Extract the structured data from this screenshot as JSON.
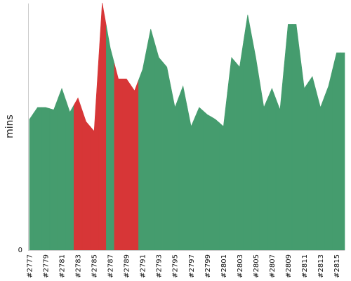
{
  "chart_data": {
    "type": "area",
    "title": "",
    "xlabel": "",
    "ylabel": "mins",
    "y_tick_label": "0",
    "ylim": [
      0,
      104
    ],
    "grid": false,
    "legend": "none",
    "colors": {
      "passed": "#459c6e",
      "failed": "#d73637"
    },
    "x_tick_labels": [
      "#2777",
      "#2779",
      "#2781",
      "#2783",
      "#2785",
      "#2787",
      "#2789",
      "#2791",
      "#2793",
      "#2795",
      "#2797",
      "#2799",
      "#2801",
      "#2803",
      "#2805",
      "#2807",
      "#2809",
      "#2811",
      "#2813",
      "#2815"
    ],
    "points": [
      {
        "x": "#2777",
        "value": 55,
        "status": "passed"
      },
      {
        "x": "#2778",
        "value": 60,
        "status": "passed"
      },
      {
        "x": "#2779",
        "value": 60,
        "status": "passed"
      },
      {
        "x": "#2780",
        "value": 59,
        "status": "passed"
      },
      {
        "x": "#2781",
        "value": 68,
        "status": "passed"
      },
      {
        "x": "#2782",
        "value": 58,
        "status": "passed"
      },
      {
        "x": "#2783",
        "value": 64,
        "status": "failed"
      },
      {
        "x": "#2784",
        "value": 54,
        "status": "failed"
      },
      {
        "x": "#2785",
        "value": 50,
        "status": "failed"
      },
      {
        "x": "#2786",
        "value": 104,
        "status": "failed"
      },
      {
        "x": "#2787",
        "value": 85,
        "status": "passed"
      },
      {
        "x": "#2788",
        "value": 72,
        "status": "failed"
      },
      {
        "x": "#2789",
        "value": 72,
        "status": "failed"
      },
      {
        "x": "#2790",
        "value": 67,
        "status": "failed"
      },
      {
        "x": "#2791",
        "value": 76,
        "status": "passed"
      },
      {
        "x": "#2792",
        "value": 93,
        "status": "passed"
      },
      {
        "x": "#2793",
        "value": 81,
        "status": "passed"
      },
      {
        "x": "#2794",
        "value": 77,
        "status": "passed"
      },
      {
        "x": "#2795",
        "value": 60,
        "status": "passed"
      },
      {
        "x": "#2796",
        "value": 69,
        "status": "passed"
      },
      {
        "x": "#2797",
        "value": 52,
        "status": "passed"
      },
      {
        "x": "#2798",
        "value": 60,
        "status": "passed"
      },
      {
        "x": "#2799",
        "value": 57,
        "status": "passed"
      },
      {
        "x": "#2800",
        "value": 55,
        "status": "passed"
      },
      {
        "x": "#2801",
        "value": 52,
        "status": "passed"
      },
      {
        "x": "#2802",
        "value": 81,
        "status": "passed"
      },
      {
        "x": "#2803",
        "value": 77,
        "status": "passed"
      },
      {
        "x": "#2804",
        "value": 99,
        "status": "passed"
      },
      {
        "x": "#2805",
        "value": 81,
        "status": "passed"
      },
      {
        "x": "#2806",
        "value": 60,
        "status": "passed"
      },
      {
        "x": "#2807",
        "value": 68,
        "status": "passed"
      },
      {
        "x": "#2808",
        "value": 59,
        "status": "passed"
      },
      {
        "x": "#2809",
        "value": 95,
        "status": "passed"
      },
      {
        "x": "#2810",
        "value": 95,
        "status": "passed"
      },
      {
        "x": "#2811",
        "value": 68,
        "status": "passed"
      },
      {
        "x": "#2812",
        "value": 73,
        "status": "passed"
      },
      {
        "x": "#2813",
        "value": 60,
        "status": "passed"
      },
      {
        "x": "#2814",
        "value": 69,
        "status": "passed"
      },
      {
        "x": "#2815",
        "value": 83,
        "status": "passed"
      },
      {
        "x": "#2816",
        "value": 83,
        "status": "passed"
      }
    ]
  }
}
